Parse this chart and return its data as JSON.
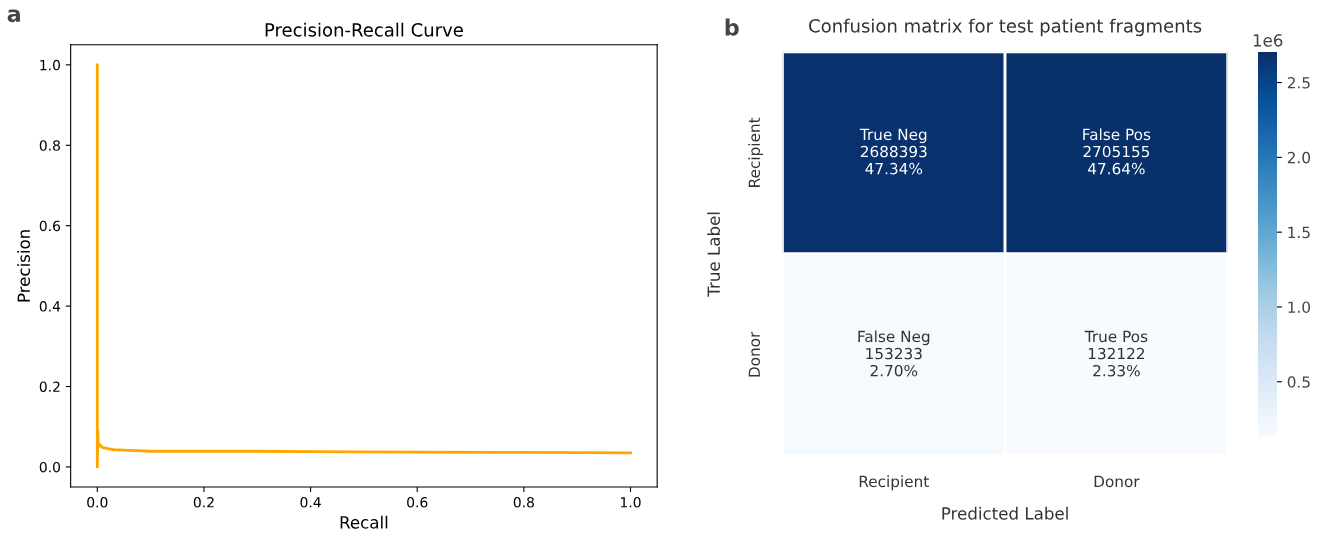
{
  "chart_data": [
    {
      "type": "line",
      "title": "Precision-Recall Curve",
      "xlabel": "Recall",
      "ylabel": "Precision",
      "annotations": [
        "a"
      ],
      "series": [
        {
          "color": "#ffa500",
          "x": [
            1.0,
            0.8,
            0.6,
            0.4,
            0.3,
            0.2,
            0.1,
            0.06,
            0.03,
            0.01,
            0.005,
            0.002,
            0.001,
            0.0,
            0.0
          ],
          "values": [
            0.035,
            0.036,
            0.037,
            0.038,
            0.039,
            0.039,
            0.039,
            0.041,
            0.043,
            0.048,
            0.055,
            0.05,
            0.09,
            0.0,
            1.0
          ]
        }
      ],
      "xlim": [
        -0.05,
        1.05
      ],
      "ylim": [
        -0.05,
        1.05
      ],
      "xticks": [
        {
          "value": 0,
          "label": "0.0"
        },
        0.2,
        0.4,
        0.6,
        0.8,
        {
          "value": 1,
          "label": "1.0"
        }
      ],
      "yticks": [
        {
          "value": 0,
          "label": "0.0"
        },
        0.2,
        0.4,
        0.6,
        0.8,
        {
          "value": 1,
          "label": "1.0"
        }
      ],
      "grid": false,
      "legend": false,
      "marker": "none",
      "line_style": "solid"
    },
    {
      "type": "heatmap",
      "title": "Confusion matrix for test patient fragments",
      "xlabel": "Predicted Label",
      "ylabel": "True Label",
      "annotations": [
        "b",
        "1e6"
      ],
      "categories": [
        "Recipient",
        "Donor"
      ],
      "y_categories": [
        "Recipient",
        "Donor"
      ],
      "cells": [
        [
          2.688393,
          2.705155
        ],
        [
          0.153233,
          0.132122
        ]
      ],
      "cell_labels": [
        [
          "True Neg\n2688393\n47.34%",
          "False Pos\n2705155\n47.64%"
        ],
        [
          "False Neg\n153233\n2.70%",
          "True Pos\n132122\n2.33%"
        ]
      ],
      "clim": [
        0.132122,
        2.705155
      ],
      "cticks": [
        0.5,
        {
          "value": 1,
          "label": "1.0"
        },
        1.5,
        {
          "value": 2,
          "label": "2.0"
        },
        2.5
      ]
    }
  ]
}
